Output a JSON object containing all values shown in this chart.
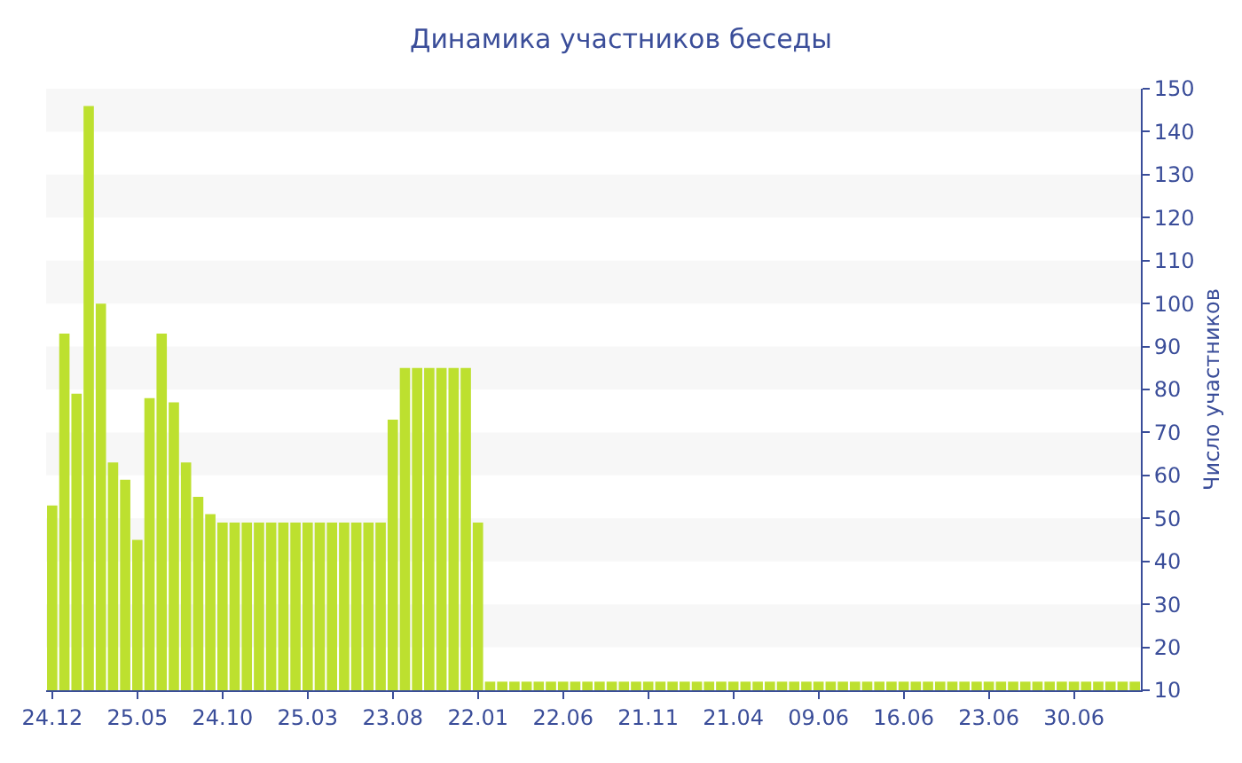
{
  "chart_data": {
    "type": "bar",
    "title": "Динамика участников беседы",
    "ylabel": "Число участников",
    "categories": [
      "24.12",
      null,
      null,
      null,
      null,
      null,
      null,
      "25.05",
      null,
      null,
      null,
      null,
      null,
      null,
      "24.10",
      null,
      null,
      null,
      null,
      null,
      null,
      "25.03",
      null,
      null,
      null,
      null,
      null,
      null,
      "23.08",
      null,
      null,
      null,
      null,
      null,
      null,
      "22.01",
      null,
      null,
      null,
      null,
      null,
      null,
      "22.06",
      null,
      null,
      null,
      null,
      null,
      null,
      "21.11",
      null,
      null,
      null,
      null,
      null,
      null,
      "21.04",
      null,
      null,
      null,
      null,
      null,
      null,
      "09.06",
      null,
      null,
      null,
      null,
      null,
      null,
      "16.06",
      null,
      null,
      null,
      null,
      null,
      null,
      "23.06",
      null,
      null,
      null,
      null,
      null,
      null,
      "30.06",
      null,
      null,
      null,
      null,
      null
    ],
    "values": [
      53,
      93,
      79,
      146,
      100,
      63,
      59,
      45,
      78,
      93,
      77,
      63,
      55,
      51,
      49,
      49,
      49,
      49,
      49,
      49,
      49,
      49,
      49,
      49,
      49,
      49,
      49,
      49,
      73,
      85,
      85,
      85,
      85,
      85,
      85,
      49,
      12,
      12,
      12,
      12,
      12,
      12,
      12,
      12,
      12,
      12,
      12,
      12,
      12,
      12,
      12,
      12,
      12,
      12,
      12,
      12,
      12,
      12,
      12,
      12,
      12,
      12,
      12,
      12,
      12,
      12,
      12,
      12,
      12,
      12,
      12,
      12,
      12,
      12,
      12,
      12,
      12,
      12,
      12,
      12,
      12,
      12,
      12,
      12,
      12,
      12,
      12,
      12,
      12,
      12
    ],
    "color": "#bde02f",
    "ylim": [
      10,
      150
    ],
    "yticks": [
      10,
      20,
      30,
      40,
      50,
      60,
      70,
      80,
      90,
      100,
      110,
      120,
      130,
      140,
      150
    ]
  }
}
